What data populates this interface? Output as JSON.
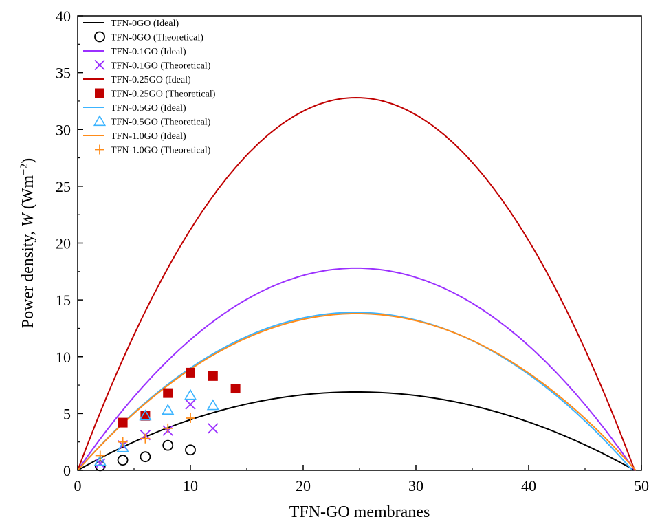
{
  "chart_data": {
    "type": "line",
    "title": "",
    "xlabel": "TFN-GO membranes",
    "ylabel": "Power density, W (Wm−2)",
    "ylabel_parts": {
      "prefix": "Power density, ",
      "symbol": "W",
      "unit_open": " (Wm",
      "unit_exp": "−2",
      "unit_close": ")"
    },
    "xlim": [
      0,
      50
    ],
    "ylim": [
      0,
      40
    ],
    "xticks": [
      0,
      10,
      20,
      30,
      40,
      50
    ],
    "yticks": [
      0,
      5,
      10,
      15,
      20,
      25,
      30,
      35,
      40
    ],
    "grid": false,
    "legend_position": "top-left",
    "series": [
      {
        "name": "TFN-0GO (Ideal)",
        "kind": "line",
        "color": "#000000",
        "peak": 6.9,
        "xmax": 49.4
      },
      {
        "name": "TFN-0GO (Theoretical)",
        "kind": "scatter",
        "marker": "circle",
        "color": "#000000",
        "points": [
          [
            2,
            0.4
          ],
          [
            4,
            0.9
          ],
          [
            6,
            1.2
          ],
          [
            8,
            2.2
          ],
          [
            10,
            1.8
          ]
        ]
      },
      {
        "name": "TFN-0.1GO (Ideal)",
        "kind": "line",
        "color": "#9b30ff",
        "peak": 17.8,
        "xmax": 49.4
      },
      {
        "name": "TFN-0.1GO (Theoretical)",
        "kind": "scatter",
        "marker": "x",
        "color": "#9b30ff",
        "points": [
          [
            2,
            0.6
          ],
          [
            4,
            2.2
          ],
          [
            6,
            3.1
          ],
          [
            8,
            3.5
          ],
          [
            10,
            5.8
          ],
          [
            12,
            3.7
          ]
        ]
      },
      {
        "name": "TFN-0.25GO (Ideal)",
        "kind": "line",
        "color": "#c00000",
        "peak": 32.8,
        "xmax": 49.4
      },
      {
        "name": "TFN-0.25GO (Theoretical)",
        "kind": "scatter",
        "marker": "square",
        "color": "#c00000",
        "points": [
          [
            4,
            4.2
          ],
          [
            6,
            4.8
          ],
          [
            8,
            6.8
          ],
          [
            10,
            8.6
          ],
          [
            12,
            8.3
          ],
          [
            14,
            7.2
          ]
        ]
      },
      {
        "name": "TFN-0.5GO (Ideal)",
        "kind": "line",
        "color": "#3cb4ff",
        "peak": 13.9,
        "xmax": 49.2
      },
      {
        "name": "TFN-0.5GO (Theoretical)",
        "kind": "scatter",
        "marker": "triangle",
        "color": "#3cb4ff",
        "points": [
          [
            2,
            0.8
          ],
          [
            4,
            2.0
          ],
          [
            6,
            4.8
          ],
          [
            8,
            5.3
          ],
          [
            10,
            6.6
          ],
          [
            12,
            5.7
          ]
        ]
      },
      {
        "name": "TFN-1.0GO (Ideal)",
        "kind": "line",
        "color": "#ff8c1a",
        "peak": 13.8,
        "xmax": 49.5
      },
      {
        "name": "TFN-1.0GO (Theoretical)",
        "kind": "scatter",
        "marker": "plus",
        "color": "#ff8c1a",
        "points": [
          [
            2,
            1.3
          ],
          [
            4,
            2.5
          ],
          [
            6,
            2.8
          ],
          [
            8,
            3.7
          ],
          [
            10,
            4.6
          ]
        ]
      }
    ]
  }
}
